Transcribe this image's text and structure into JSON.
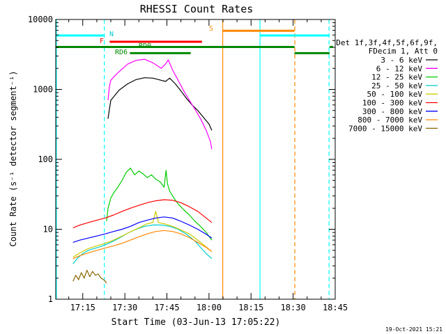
{
  "chart_data": {
    "type": "line",
    "title": "RHESSI Count Rates",
    "xlabel": "Start Time (03-Jun-13 17:05:22)",
    "ylabel": "Count Rate (s⁻¹ detector segment⁻¹)",
    "xlim": [
      65.37,
      165.0
    ],
    "ylim": [
      1,
      10000
    ],
    "y_scale": "log",
    "x_ticks": [
      {
        "value": 75,
        "label": "17:15"
      },
      {
        "value": 90,
        "label": "17:30"
      },
      {
        "value": 105,
        "label": "17:45"
      },
      {
        "value": 120,
        "label": "18:00"
      },
      {
        "value": 135,
        "label": "18:15"
      },
      {
        "value": 150,
        "label": "18:30"
      },
      {
        "value": 165,
        "label": "18:45"
      }
    ],
    "y_ticks": [
      {
        "value": 1,
        "label": "1"
      },
      {
        "value": 10,
        "label": "10"
      },
      {
        "value": 100,
        "label": "100"
      },
      {
        "value": 1000,
        "label": "1000"
      },
      {
        "value": 10000,
        "label": "10000"
      }
    ],
    "legend": {
      "position": "right",
      "header": [
        "Det 1f,3f,4f,5f,6f,9f,",
        "FDecim 1, Att 0"
      ],
      "entries": [
        {
          "label": "3 - 6 keV",
          "color": "#000000"
        },
        {
          "label": "6 - 12 keV",
          "color": "#ff00ff"
        },
        {
          "label": "12 - 25 keV",
          "color": "#00cc00"
        },
        {
          "label": "25 - 50 keV",
          "color": "#00cccc"
        },
        {
          "label": "50 - 100 keV",
          "color": "#cccc00"
        },
        {
          "label": "100 - 300 keV",
          "color": "#ff0000"
        },
        {
          "label": "300 - 800 keV",
          "color": "#0000ff"
        },
        {
          "label": "800 - 7000 keV",
          "color": "#ff8800"
        },
        {
          "label": "7000 - 15000 keV",
          "color": "#886600"
        }
      ]
    },
    "series": [
      {
        "name": "3 - 6 keV",
        "color": "#000000",
        "x": [
          84.0,
          84.5,
          85.0,
          86.0,
          88.0,
          91.0,
          94.0,
          97.0,
          100.0,
          103.0,
          104.5,
          106.0,
          108.0,
          110.0,
          112.0,
          114.0,
          116.0,
          118.0,
          120.0,
          121.0
        ],
        "y": [
          380,
          520,
          700,
          780,
          980,
          1200,
          1380,
          1470,
          1450,
          1350,
          1300,
          1450,
          1200,
          950,
          740,
          600,
          500,
          400,
          320,
          260
        ]
      },
      {
        "name": "6 - 12 keV",
        "color": "#ff00ff",
        "x": [
          84.0,
          84.5,
          85.0,
          86.0,
          88.0,
          91.0,
          94.0,
          97.0,
          100.0,
          103.0,
          104.5,
          105.5,
          107.0,
          109.0,
          111.0,
          113.0,
          115.0,
          117.0,
          119.0,
          120.5,
          121.0
        ],
        "y": [
          700,
          1100,
          1350,
          1500,
          1800,
          2300,
          2600,
          2700,
          2400,
          2000,
          2300,
          2650,
          1900,
          1350,
          950,
          700,
          520,
          380,
          260,
          180,
          140
        ]
      },
      {
        "name": "12 - 25 keV",
        "color": "#00cc00",
        "x": [
          83.5,
          84.0,
          85.0,
          86.0,
          87.5,
          89.0,
          90.5,
          92.0,
          93.5,
          95.0,
          96.5,
          98.0,
          99.5,
          101.0,
          102.5,
          104.0,
          104.7,
          105.2,
          106.0,
          107.5,
          109.0,
          111.0,
          113.0,
          115.0,
          117.0,
          119.0,
          121.0
        ],
        "y": [
          13,
          20,
          28,
          33,
          40,
          50,
          65,
          75,
          60,
          68,
          62,
          55,
          60,
          52,
          48,
          40,
          70,
          45,
          35,
          28,
          23,
          19,
          16,
          13,
          11,
          9,
          7
        ]
      },
      {
        "name": "25 - 50 keV",
        "color": "#00cccc",
        "x": [
          71.5,
          73.0,
          75.0,
          77.0,
          79.0,
          81.0,
          83.0,
          85.0,
          88.0,
          91.0,
          94.0,
          97.0,
          100.0,
          103.0,
          106.0,
          109.0,
          112.0,
          115.0,
          117.0,
          119.0,
          121.0
        ],
        "y": [
          3.2,
          3.8,
          4.5,
          5.0,
          5.3,
          5.6,
          6.0,
          6.5,
          7.5,
          8.8,
          10.0,
          11.0,
          11.5,
          11.5,
          11.0,
          10.0,
          8.5,
          6.8,
          5.5,
          4.5,
          3.8
        ]
      },
      {
        "name": "50 - 100 keV",
        "color": "#cccc00",
        "x": [
          71.5,
          74.0,
          77.0,
          80.0,
          83.0,
          86.0,
          89.0,
          92.0,
          95.0,
          98.0,
          100.0,
          101.0,
          102.0,
          104.0,
          107.0,
          110.0,
          113.0,
          116.0,
          119.0,
          121.0
        ],
        "y": [
          4.0,
          4.6,
          5.3,
          5.8,
          6.3,
          7.0,
          8.0,
          9.2,
          10.5,
          12.0,
          12.5,
          18.0,
          12.5,
          12.0,
          11.0,
          9.8,
          8.6,
          7.0,
          5.6,
          4.8
        ]
      },
      {
        "name": "100 - 300 keV",
        "color": "#ff0000",
        "x": [
          71.5,
          74.0,
          77.0,
          80.0,
          83.0,
          86.0,
          89.0,
          92.0,
          95.0,
          98.0,
          101.0,
          104.0,
          107.0,
          110.0,
          113.0,
          116.0,
          119.0,
          121.0
        ],
        "y": [
          10.5,
          11.5,
          12.5,
          13.5,
          14.5,
          16.0,
          18.0,
          20.0,
          22.0,
          24.0,
          25.5,
          26.5,
          26.0,
          24.0,
          21.0,
          18.0,
          14.5,
          12.5
        ]
      },
      {
        "name": "300 - 800 keV",
        "color": "#0000ff",
        "x": [
          71.5,
          74.0,
          77.0,
          80.0,
          83.0,
          86.0,
          89.0,
          92.0,
          95.0,
          98.0,
          101.0,
          104.0,
          107.0,
          110.0,
          113.0,
          116.0,
          119.0,
          121.0
        ],
        "y": [
          6.5,
          7.0,
          7.5,
          8.0,
          8.6,
          9.3,
          10.0,
          11.0,
          12.5,
          13.5,
          14.5,
          15.0,
          14.5,
          13.0,
          11.5,
          10.0,
          8.5,
          7.5
        ]
      },
      {
        "name": "800 - 7000 keV",
        "color": "#ff8800",
        "x": [
          71.5,
          74.0,
          77.0,
          80.0,
          83.0,
          86.0,
          89.0,
          92.0,
          95.0,
          98.0,
          101.0,
          104.0,
          107.0,
          110.0,
          113.0,
          116.0,
          119.0,
          121.0
        ],
        "y": [
          3.8,
          4.2,
          4.6,
          5.0,
          5.4,
          5.8,
          6.3,
          7.0,
          7.8,
          8.6,
          9.3,
          9.6,
          9.3,
          8.6,
          7.6,
          6.5,
          5.5,
          4.8
        ]
      },
      {
        "name": "7000 - 15000 keV",
        "color": "#886600",
        "x": [
          71.5,
          72.5,
          73.5,
          74.5,
          75.5,
          76.5,
          77.5,
          78.5,
          79.5,
          80.5,
          81.5,
          82.5,
          83.5
        ],
        "y": [
          1.8,
          2.2,
          1.9,
          2.4,
          2.0,
          2.6,
          2.1,
          2.5,
          2.2,
          2.3,
          2.0,
          1.9,
          1.7
        ]
      }
    ],
    "flags": [
      {
        "label": "N",
        "color": "#00ffff",
        "label_color": "#00cccc",
        "y": 5900,
        "segments": [
          [
            65.37,
            82.6
          ],
          [
            138.2,
            163.0
          ]
        ]
      },
      {
        "label": "S",
        "color": "#ff8800",
        "label_color": "#ff8800",
        "y": 6900,
        "segments": [
          [
            125.0,
            150.5
          ]
        ]
      },
      {
        "label": "F",
        "color": "#ff0000",
        "label_color": "#ff0000",
        "y": 4800,
        "segments": [
          [
            84.6,
            117.5
          ]
        ]
      },
      {
        "label": "RD0",
        "color": "#008800",
        "label_color": "#008800",
        "y": 4050,
        "segments": [
          [
            65.37,
            150.5
          ],
          [
            163.0,
            164.2
          ]
        ]
      },
      {
        "label": "RD6",
        "color": "#008800",
        "label_color": "#008800",
        "y": 3300,
        "segments": [
          [
            91.8,
            113.5
          ],
          [
            150.5,
            163.0
          ]
        ]
      }
    ],
    "vertical_markers": [
      {
        "x": 65.6,
        "color": "#00ffff",
        "style": "solid"
      },
      {
        "x": 82.7,
        "color": "#00ffff",
        "style": "dashed"
      },
      {
        "x": 124.9,
        "color": "#ff8800",
        "style": "solid"
      },
      {
        "x": 138.2,
        "color": "#00ffff",
        "style": "solid"
      },
      {
        "x": 150.6,
        "color": "#ff8800",
        "style": "dashed"
      },
      {
        "x": 162.8,
        "color": "#00ffff",
        "style": "dashed"
      }
    ],
    "footer_date": "19-Oct-2021 15:21"
  }
}
